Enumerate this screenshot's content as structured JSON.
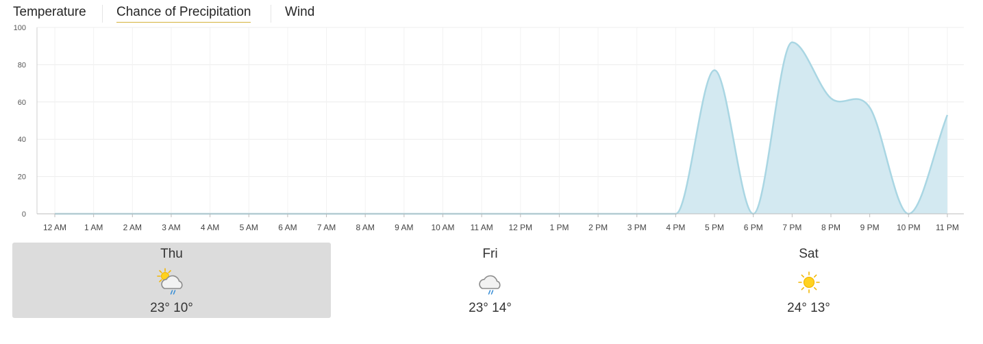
{
  "tabs": [
    {
      "label": "Temperature",
      "active": false
    },
    {
      "label": "Chance of Precipitation",
      "active": true
    },
    {
      "label": "Wind",
      "active": false
    }
  ],
  "colors": {
    "accent": "#d4b23a",
    "area_fill": "#d3e9f1",
    "area_line": "#a9d6e3",
    "grid": "#ececec",
    "selected_day_bg": "#dcdcdc"
  },
  "chart_data": {
    "type": "area",
    "title": "",
    "xlabel": "",
    "ylabel": "",
    "ylim": [
      0,
      100
    ],
    "yticks": [
      0,
      20,
      40,
      60,
      80,
      100
    ],
    "grid": true,
    "categories": [
      "12 AM",
      "1 AM",
      "2 AM",
      "3 AM",
      "4 AM",
      "5 AM",
      "6 AM",
      "7 AM",
      "8 AM",
      "9 AM",
      "10 AM",
      "11 AM",
      "12 PM",
      "1 PM",
      "2 PM",
      "3 PM",
      "4 PM",
      "5 PM",
      "6 PM",
      "7 PM",
      "8 PM",
      "9 PM",
      "10 PM",
      "11 PM"
    ],
    "series": [
      {
        "values": [
          0,
          0,
          0,
          0,
          0,
          0,
          0,
          0,
          0,
          0,
          0,
          0,
          0,
          0,
          0,
          0,
          0,
          77,
          0,
          92,
          62,
          57,
          0,
          53
        ]
      }
    ]
  },
  "days": [
    {
      "name": "Thu",
      "icon": "partly-sunny-rain-icon",
      "high": "23°",
      "low": "10°",
      "selected": true
    },
    {
      "name": "Fri",
      "icon": "cloud-rain-icon",
      "high": "23°",
      "low": "14°",
      "selected": false
    },
    {
      "name": "Sat",
      "icon": "sun-icon",
      "high": "24°",
      "low": "13°",
      "selected": false
    }
  ]
}
